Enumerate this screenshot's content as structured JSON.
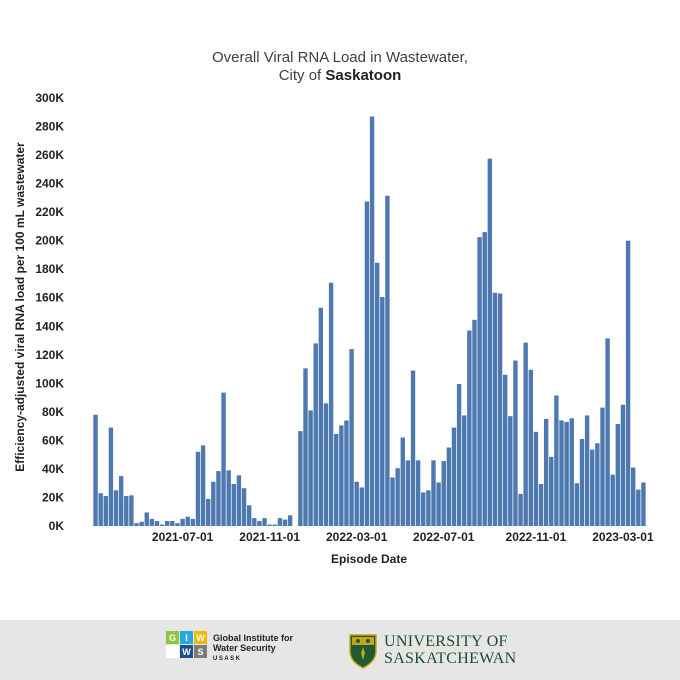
{
  "chart_data": {
    "type": "bar",
    "title_line1": "Overall Viral RNA Load in Wastewater,",
    "title_line2_prefix": "City of ",
    "title_line2_bold": "Saskatoon",
    "xlabel": "Episode Date",
    "ylabel": "Efficiency-adjusted viral RNA load per 100 mL wastewater",
    "ylim": [
      0,
      300000
    ],
    "y_ticks": [
      {
        "value": 0,
        "label": "0K"
      },
      {
        "value": 20000,
        "label": "20K"
      },
      {
        "value": 40000,
        "label": "40K"
      },
      {
        "value": 60000,
        "label": "60K"
      },
      {
        "value": 80000,
        "label": "80K"
      },
      {
        "value": 100000,
        "label": "100K"
      },
      {
        "value": 120000,
        "label": "120K"
      },
      {
        "value": 140000,
        "label": "140K"
      },
      {
        "value": 160000,
        "label": "160K"
      },
      {
        "value": 180000,
        "label": "180K"
      },
      {
        "value": 200000,
        "label": "200K"
      },
      {
        "value": 220000,
        "label": "220K"
      },
      {
        "value": 240000,
        "label": "240K"
      },
      {
        "value": 260000,
        "label": "260K"
      },
      {
        "value": 280000,
        "label": "280K"
      },
      {
        "value": 300000,
        "label": "300K"
      }
    ],
    "x_ticks": [
      {
        "index": 17,
        "label": "2021-07-01"
      },
      {
        "index": 34,
        "label": "2021-11-01"
      },
      {
        "index": 51,
        "label": "2022-03-01"
      },
      {
        "index": 68,
        "label": "2022-07-01"
      },
      {
        "index": 86,
        "label": "2022-11-01"
      },
      {
        "index": 103,
        "label": "2023-03-01"
      }
    ],
    "bar_color": "#4e79b0",
    "values": [
      78000,
      23000,
      21000,
      69000,
      25000,
      35000,
      21000,
      21500,
      2000,
      3000,
      9500,
      5000,
      3500,
      1000,
      3500,
      3500,
      2000,
      5000,
      6500,
      5000,
      52000,
      56500,
      19000,
      31000,
      38500,
      93500,
      39000,
      29500,
      35500,
      26500,
      14500,
      5500,
      3500,
      5500,
      1000,
      1000,
      5500,
      4500,
      7500,
      0,
      66500,
      110500,
      81000,
      128000,
      153000,
      86000,
      170500,
      64500,
      70500,
      74000,
      124000,
      31000,
      27000,
      227500,
      287000,
      184500,
      160500,
      231500,
      34000,
      40500,
      62000,
      46000,
      109000,
      46000,
      23500,
      25000,
      46000,
      30500,
      45500,
      55000,
      69000,
      99500,
      77500,
      137000,
      144500,
      202500,
      206000,
      257500,
      163500,
      163000,
      106000,
      77000,
      116000,
      22500,
      128500,
      109500,
      66000,
      29500,
      75000,
      48500,
      91500,
      74000,
      73000,
      75500,
      30000,
      61000,
      77500,
      53500,
      58000,
      83000,
      131500,
      36000,
      71500,
      85000,
      200000,
      41000,
      25500,
      30500
    ]
  },
  "footer": {
    "giws_letters": [
      "G",
      "I",
      "W",
      "",
      "W",
      "S"
    ],
    "giws_colors": [
      "#8cc63f",
      "#29a8df",
      "#f2b705",
      "#ffffff",
      "#1e4d8c",
      "#7a7a7a"
    ],
    "giws_name": "Global Institute for Water Security",
    "giws_sub": "USASK",
    "uofs_line1": "UNIVERSITY OF",
    "uofs_line2": "SASKATCHEWAN",
    "uofs_color": "#1e4d2b"
  }
}
